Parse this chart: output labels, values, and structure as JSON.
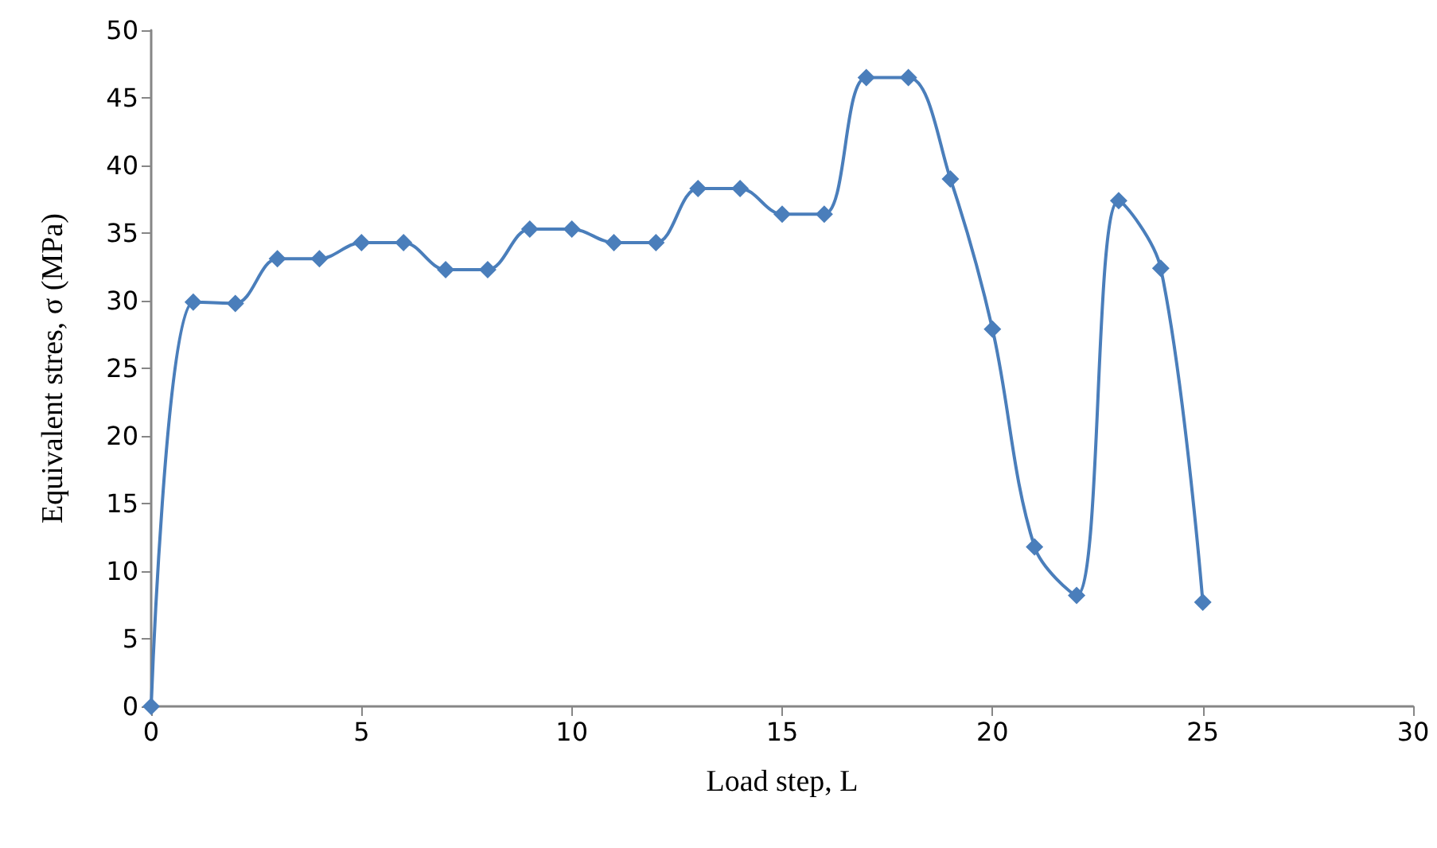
{
  "chart_data": {
    "type": "line",
    "xlabel": "Load step, L",
    "ylabel": "Equivalent stres, σ (MPa)",
    "x": [
      0,
      1,
      2,
      3,
      4,
      5,
      6,
      7,
      8,
      9,
      10,
      11,
      12,
      13,
      14,
      15,
      16,
      17,
      18,
      19,
      20,
      21,
      22,
      23,
      24,
      25
    ],
    "series": [
      {
        "color": "#4a7ebb",
        "values": [
          0,
          29.9,
          29.8,
          33.1,
          33.1,
          34.3,
          34.3,
          32.3,
          32.3,
          35.3,
          35.3,
          34.3,
          34.3,
          38.3,
          38.3,
          36.4,
          36.4,
          46.5,
          46.5,
          39.0,
          27.9,
          11.8,
          8.2,
          37.4,
          32.4,
          7.7
        ]
      }
    ],
    "xlim": [
      0,
      30
    ],
    "xticks": [
      0,
      5,
      10,
      15,
      20,
      25,
      30
    ],
    "ylim": [
      0,
      50
    ],
    "yticks": [
      0,
      5,
      10,
      15,
      20,
      25,
      30,
      35,
      40,
      45,
      50
    ],
    "marker": "diamond",
    "line_style": "solid"
  }
}
